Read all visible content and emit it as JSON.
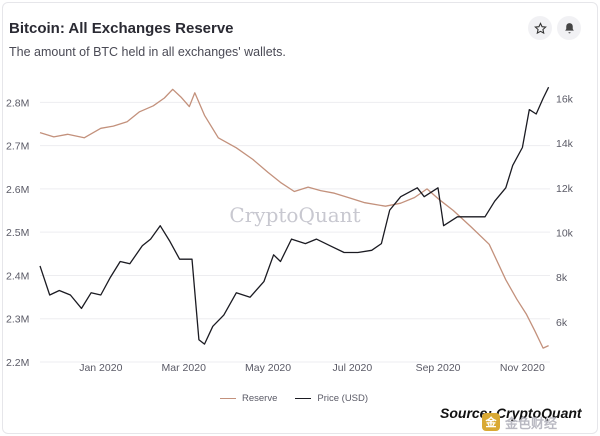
{
  "header": {
    "title": "Bitcoin: All Exchanges Reserve",
    "subtitle": "The amount of BTC held in all exchanges' wallets."
  },
  "icons": {
    "star": "star-icon",
    "bell": "bell-icon"
  },
  "watermark": "CryptoQuant",
  "source": "Source: CryptoQuant",
  "badge_text": "金色财经",
  "colors": {
    "reserve": "#c3917c",
    "price": "#1b1b22",
    "watermark": "#c8c8d0"
  },
  "chart_data": {
    "type": "line",
    "title": "Bitcoin: All Exchanges Reserve",
    "subtitle": "The amount of BTC held in all exchanges' wallets.",
    "x_tick_labels": [
      "Jan 2020",
      "Mar 2020",
      "May 2020",
      "Jul 2020",
      "Sep 2020",
      "Nov 2020"
    ],
    "x_ticks": [
      "2020-01-01",
      "2020-03-01",
      "2020-05-01",
      "2020-07-01",
      "2020-09-01",
      "2020-11-01"
    ],
    "x_range": [
      "2019-11-18",
      "2020-11-21"
    ],
    "y_left": {
      "ticks": [
        2200000,
        2300000,
        2400000,
        2500000,
        2600000,
        2700000,
        2800000
      ],
      "tick_labels": [
        "2.2M",
        "2.3M",
        "2.4M",
        "2.5M",
        "2.6M",
        "2.7M",
        "2.8M"
      ],
      "range": [
        2200000,
        2840000
      ]
    },
    "y_right": {
      "ticks": [
        6000,
        8000,
        10000,
        12000,
        14000,
        16000
      ],
      "tick_labels": [
        "6k",
        "8k",
        "10k",
        "12k",
        "14k",
        "16k"
      ],
      "range": [
        4200,
        16600
      ]
    },
    "legend": "bottom-center",
    "grid": "horizontal",
    "series": [
      {
        "name": "Reserve",
        "axis": "left",
        "color": "#c3917c",
        "points": [
          [
            "2019-11-18",
            2730000
          ],
          [
            "2019-11-28",
            2720000
          ],
          [
            "2019-12-08",
            2726000
          ],
          [
            "2019-12-20",
            2718000
          ],
          [
            "2020-01-01",
            2740000
          ],
          [
            "2020-01-10",
            2745000
          ],
          [
            "2020-01-20",
            2755000
          ],
          [
            "2020-01-29",
            2778000
          ],
          [
            "2020-02-08",
            2792000
          ],
          [
            "2020-02-16",
            2810000
          ],
          [
            "2020-02-22",
            2830000
          ],
          [
            "2020-02-28",
            2812000
          ],
          [
            "2020-03-05",
            2790000
          ],
          [
            "2020-03-09",
            2822000
          ],
          [
            "2020-03-16",
            2770000
          ],
          [
            "2020-03-26",
            2718000
          ],
          [
            "2020-04-08",
            2695000
          ],
          [
            "2020-04-20",
            2668000
          ],
          [
            "2020-05-01",
            2638000
          ],
          [
            "2020-05-10",
            2615000
          ],
          [
            "2020-05-20",
            2594000
          ],
          [
            "2020-05-30",
            2604000
          ],
          [
            "2020-06-08",
            2596000
          ],
          [
            "2020-06-18",
            2590000
          ],
          [
            "2020-06-30",
            2578000
          ],
          [
            "2020-07-10",
            2568000
          ],
          [
            "2020-07-25",
            2560000
          ],
          [
            "2020-08-05",
            2567000
          ],
          [
            "2020-08-15",
            2580000
          ],
          [
            "2020-08-24",
            2600000
          ],
          [
            "2020-09-02",
            2575000
          ],
          [
            "2020-09-12",
            2550000
          ],
          [
            "2020-09-25",
            2512000
          ],
          [
            "2020-10-08",
            2472000
          ],
          [
            "2020-10-20",
            2390000
          ],
          [
            "2020-10-28",
            2345000
          ],
          [
            "2020-11-04",
            2310000
          ],
          [
            "2020-11-10",
            2272000
          ],
          [
            "2020-11-16",
            2232000
          ],
          [
            "2020-11-20",
            2238000
          ]
        ]
      },
      {
        "name": "Price (USD)",
        "axis": "right",
        "color": "#1b1b22",
        "points": [
          [
            "2019-11-18",
            8500
          ],
          [
            "2019-11-25",
            7200
          ],
          [
            "2019-12-02",
            7400
          ],
          [
            "2019-12-10",
            7200
          ],
          [
            "2019-12-18",
            6600
          ],
          [
            "2019-12-25",
            7300
          ],
          [
            "2020-01-01",
            7200
          ],
          [
            "2020-01-08",
            8000
          ],
          [
            "2020-01-15",
            8700
          ],
          [
            "2020-01-22",
            8600
          ],
          [
            "2020-01-31",
            9400
          ],
          [
            "2020-02-06",
            9700
          ],
          [
            "2020-02-13",
            10300
          ],
          [
            "2020-02-20",
            9600
          ],
          [
            "2020-02-27",
            8800
          ],
          [
            "2020-03-07",
            8800
          ],
          [
            "2020-03-12",
            5200
          ],
          [
            "2020-03-16",
            5000
          ],
          [
            "2020-03-22",
            5800
          ],
          [
            "2020-03-30",
            6300
          ],
          [
            "2020-04-08",
            7300
          ],
          [
            "2020-04-18",
            7100
          ],
          [
            "2020-04-28",
            7800
          ],
          [
            "2020-05-05",
            9000
          ],
          [
            "2020-05-10",
            8700
          ],
          [
            "2020-05-18",
            9700
          ],
          [
            "2020-05-28",
            9500
          ],
          [
            "2020-06-05",
            9700
          ],
          [
            "2020-06-15",
            9400
          ],
          [
            "2020-06-25",
            9100
          ],
          [
            "2020-07-05",
            9100
          ],
          [
            "2020-07-15",
            9200
          ],
          [
            "2020-07-22",
            9500
          ],
          [
            "2020-07-28",
            11000
          ],
          [
            "2020-08-05",
            11600
          ],
          [
            "2020-08-17",
            12000
          ],
          [
            "2020-08-22",
            11600
          ],
          [
            "2020-09-01",
            12000
          ],
          [
            "2020-09-05",
            10300
          ],
          [
            "2020-09-15",
            10700
          ],
          [
            "2020-09-25",
            10700
          ],
          [
            "2020-10-05",
            10700
          ],
          [
            "2020-10-12",
            11400
          ],
          [
            "2020-10-20",
            12000
          ],
          [
            "2020-10-25",
            13000
          ],
          [
            "2020-11-01",
            13800
          ],
          [
            "2020-11-06",
            15500
          ],
          [
            "2020-11-11",
            15300
          ],
          [
            "2020-11-16",
            16000
          ],
          [
            "2020-11-20",
            16500
          ]
        ]
      }
    ]
  }
}
